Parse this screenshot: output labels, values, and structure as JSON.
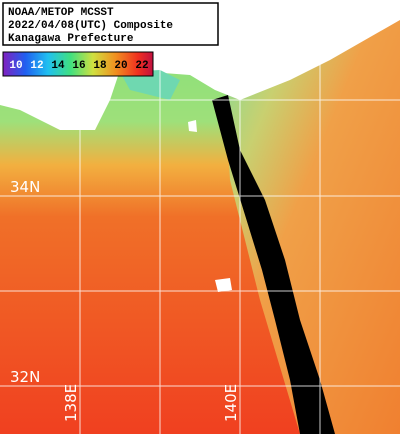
{
  "header": {
    "lines": [
      "NOAA/METOP MCSST",
      "2022/04/08(UTC) Composite",
      "Kanagawa Prefecture"
    ]
  },
  "colorbar": {
    "ticks": [
      10,
      12,
      14,
      16,
      18,
      20,
      22
    ]
  },
  "grid": {
    "lat_labels": [
      "34N",
      "32N"
    ],
    "lon_labels": [
      "138E",
      "140E"
    ]
  }
}
